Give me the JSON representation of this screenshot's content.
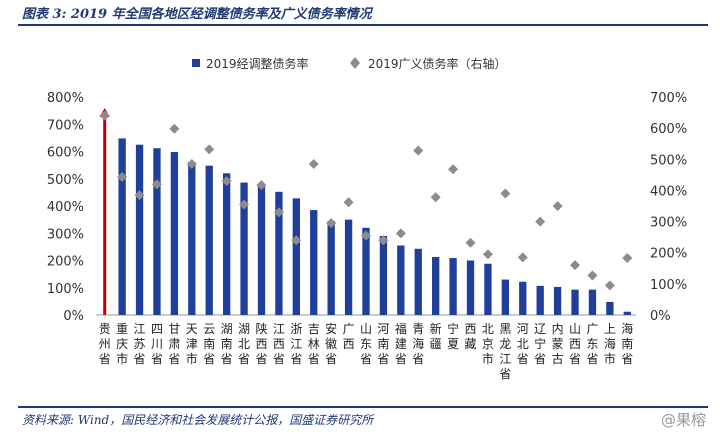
{
  "title": "图表 3:  2019 年全国各地区经调整债务率及广义债务率情况",
  "source": "资料来源:  Wind，国民经济和社会发展统计公报，国盛证券研究所",
  "watermark": "@果榕",
  "colors": {
    "bar": "#1f3f9a",
    "highlight": "#c00000",
    "diamond": "#8c8c8c",
    "axis_line": "#1f3a73"
  },
  "chart_data": {
    "type": "bar",
    "categories": [
      "贵州省",
      "重庆市",
      "江苏省",
      "四川省",
      "甘肃省",
      "天津市",
      "云南省",
      "湖南省",
      "湖北省",
      "陕西省",
      "江西省",
      "浙江省",
      "吉林省",
      "安徽省",
      "广西",
      "山东省",
      "河南省",
      "福建省",
      "青海省",
      "新疆",
      "宁夏",
      "西藏",
      "北京市",
      "黑龙江省",
      "河北省",
      "辽宁省",
      "内蒙古",
      "山西省",
      "广东省",
      "上海市",
      "海南省"
    ],
    "legend": [
      "2019经调整债务率",
      "2019广义债务率（右轴）"
    ],
    "highlight_index": 0,
    "series": [
      {
        "name": "2019经调整债务率",
        "axis": "left",
        "values": [
          745,
          648,
          625,
          612,
          598,
          562,
          548,
          520,
          486,
          480,
          452,
          428,
          385,
          345,
          350,
          320,
          290,
          255,
          243,
          213,
          209,
          200,
          188,
          130,
          122,
          107,
          103,
          93,
          93,
          48,
          12
        ]
      },
      {
        "name": "2019广义债务率（右轴）",
        "axis": "right",
        "marker": "diamond",
        "values": [
          640,
          443,
          385,
          420,
          598,
          485,
          532,
          430,
          355,
          417,
          330,
          240,
          485,
          295,
          362,
          255,
          240,
          262,
          528,
          378,
          468,
          232,
          195,
          390,
          185,
          300,
          350,
          160,
          127,
          95,
          183
        ]
      }
    ],
    "y_left": {
      "min": 0,
      "max": 800,
      "step": 100,
      "ticks": [
        "0%",
        "100%",
        "200%",
        "300%",
        "400%",
        "500%",
        "600%",
        "700%",
        "800%"
      ]
    },
    "y_right": {
      "min": 0,
      "max": 700,
      "step": 100,
      "ticks": [
        "0%",
        "100%",
        "200%",
        "300%",
        "400%",
        "500%",
        "600%",
        "700%"
      ]
    },
    "grid": false,
    "legend_position": "top-center"
  }
}
